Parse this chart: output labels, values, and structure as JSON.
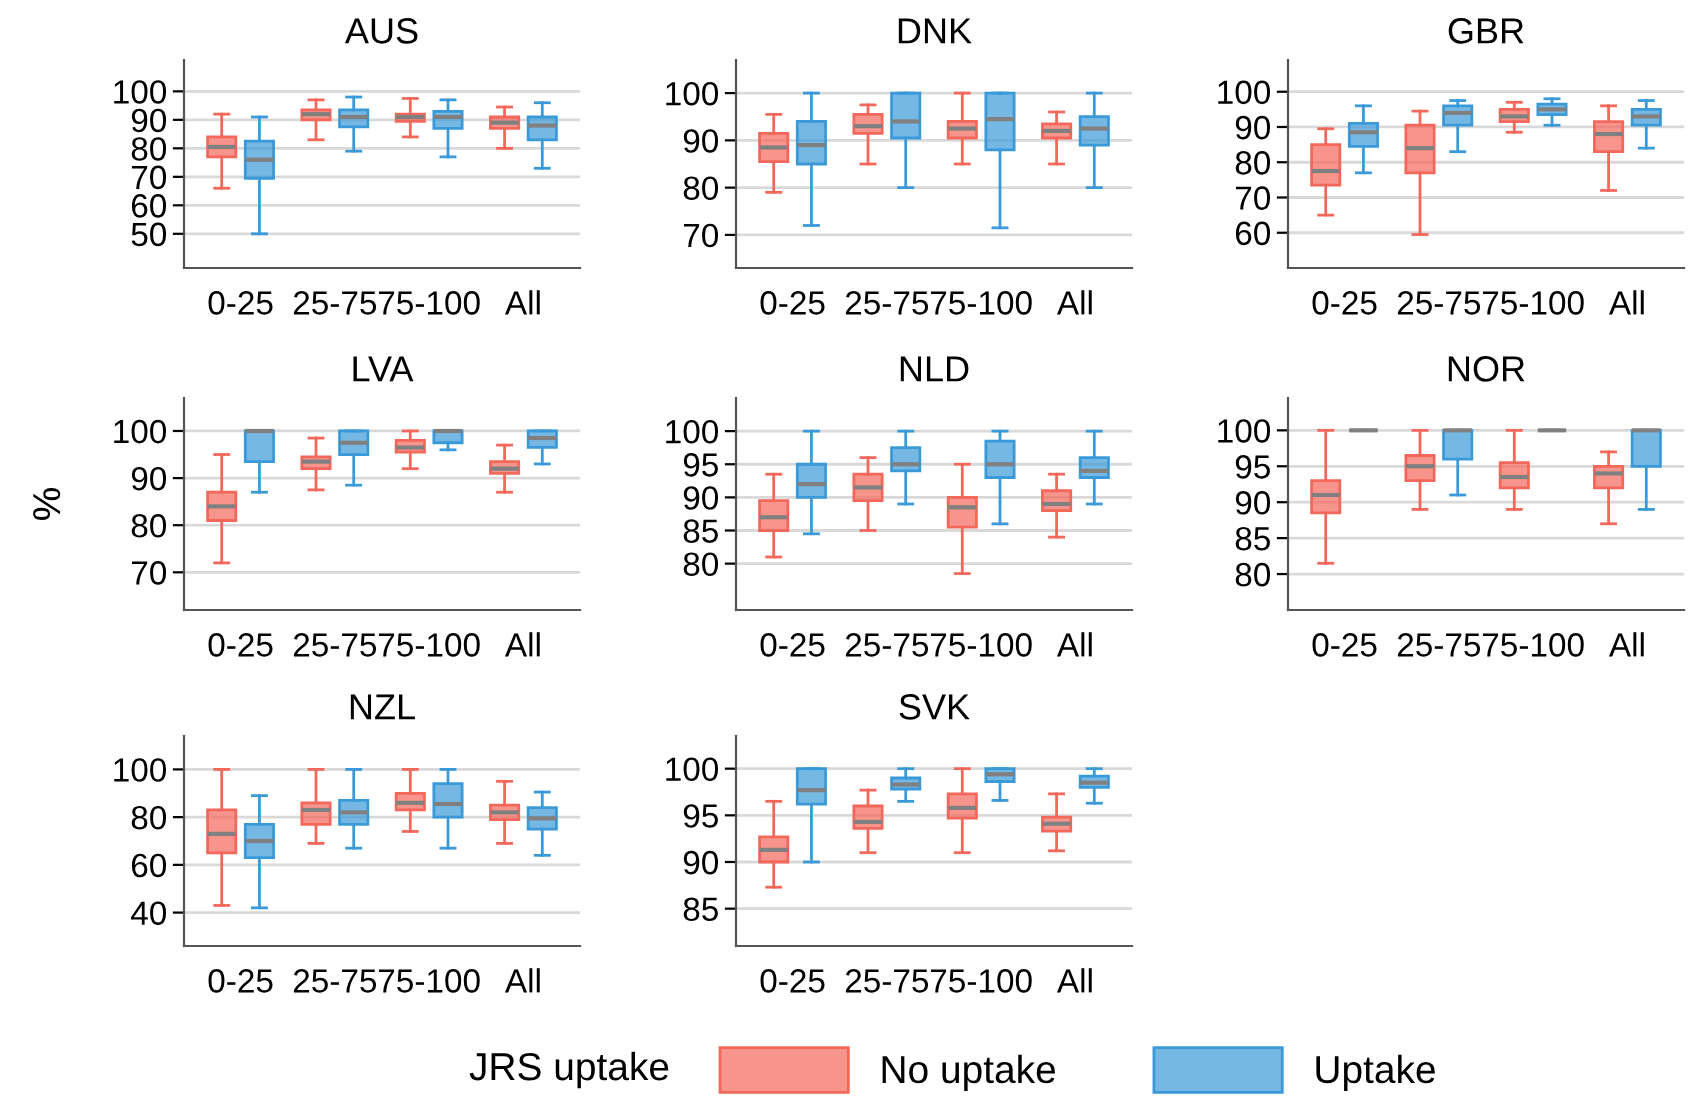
{
  "chart_data": [
    {
      "type": "box",
      "title": "AUS",
      "categories": [
        "0-25",
        "25-75",
        "75-100",
        "All"
      ],
      "ylim": [
        38,
        111
      ],
      "yticks": [
        50,
        60,
        70,
        80,
        90,
        100
      ],
      "grid": "y",
      "legend": "bottom",
      "legend_title": "JRS uptake",
      "series": [
        {
          "name": "No uptake",
          "color": "#f4685c",
          "boxes": [
            {
              "low": 66,
              "q1": 77,
              "median": 80.5,
              "q3": 84,
              "high": 92
            },
            {
              "low": 83,
              "q1": 90,
              "median": 92,
              "q3": 93.5,
              "high": 97
            },
            {
              "low": 84,
              "q1": 89.5,
              "median": 91,
              "q3": 92,
              "high": 97.5
            },
            {
              "low": 80,
              "q1": 87,
              "median": 89,
              "q3": 91,
              "high": 94.5
            }
          ]
        },
        {
          "name": "Uptake",
          "color": "#3a9ad9",
          "boxes": [
            {
              "low": 50,
              "q1": 69.5,
              "median": 76,
              "q3": 82.5,
              "high": 91
            },
            {
              "low": 79,
              "q1": 87.5,
              "median": 91,
              "q3": 93.5,
              "high": 98
            },
            {
              "low": 77,
              "q1": 87,
              "median": 91,
              "q3": 93,
              "high": 97
            },
            {
              "low": 73,
              "q1": 83,
              "median": 88,
              "q3": 91,
              "high": 96
            }
          ]
        }
      ]
    },
    {
      "type": "box",
      "title": "DNK",
      "categories": [
        "0-25",
        "25-75",
        "75-100",
        "All"
      ],
      "ylim": [
        63,
        107
      ],
      "yticks": [
        70,
        80,
        90,
        100
      ],
      "grid": "y",
      "series": [
        {
          "color": "#f4685c",
          "boxes": [
            {
              "low": 79,
              "q1": 85.5,
              "median": 88.5,
              "q3": 91.5,
              "high": 95.5
            },
            {
              "low": 85,
              "q1": 91.5,
              "median": 93,
              "q3": 95.5,
              "high": 97.5
            },
            {
              "low": 85,
              "q1": 90.5,
              "median": 92.5,
              "q3": 94,
              "high": 100
            },
            {
              "low": 85,
              "q1": 90.5,
              "median": 92,
              "q3": 93.5,
              "high": 96
            }
          ]
        },
        {
          "color": "#3a9ad9",
          "boxes": [
            {
              "low": 72,
              "q1": 85,
              "median": 89,
              "q3": 94,
              "high": 100
            },
            {
              "low": 80,
              "q1": 90.5,
              "median": 94,
              "q3": 100,
              "high": 100
            },
            {
              "low": 71.5,
              "q1": 88,
              "median": 94.5,
              "q3": 100,
              "high": 100
            },
            {
              "low": 80,
              "q1": 89,
              "median": 92.5,
              "q3": 95,
              "high": 100
            }
          ]
        }
      ]
    },
    {
      "type": "box",
      "title": "GBR",
      "categories": [
        "0-25",
        "25-75",
        "75-100",
        "All"
      ],
      "ylim": [
        50,
        109
      ],
      "yticks": [
        60,
        70,
        80,
        90,
        100
      ],
      "grid": "y",
      "series": [
        {
          "color": "#f4685c",
          "boxes": [
            {
              "low": 65,
              "q1": 73.5,
              "median": 77.5,
              "q3": 85,
              "high": 89.5
            },
            {
              "low": 59.5,
              "q1": 77,
              "median": 84,
              "q3": 90.5,
              "high": 94.5
            },
            {
              "low": 88.5,
              "q1": 91.5,
              "median": 93,
              "q3": 95,
              "high": 97
            },
            {
              "low": 72,
              "q1": 83,
              "median": 88,
              "q3": 91.5,
              "high": 96
            }
          ]
        },
        {
          "color": "#3a9ad9",
          "boxes": [
            {
              "low": 77,
              "q1": 84.5,
              "median": 88.5,
              "q3": 91,
              "high": 96
            },
            {
              "low": 83,
              "q1": 90.5,
              "median": 94,
              "q3": 96,
              "high": 97.5
            },
            {
              "low": 90.5,
              "q1": 93.5,
              "median": 95,
              "q3": 96.5,
              "high": 98
            },
            {
              "low": 84,
              "q1": 90.5,
              "median": 93,
              "q3": 95,
              "high": 97.5
            }
          ]
        }
      ]
    },
    {
      "type": "box",
      "title": "LVA",
      "ylabel": "%",
      "categories": [
        "0-25",
        "25-75",
        "75-100",
        "All"
      ],
      "ylim": [
        62,
        107
      ],
      "yticks": [
        70,
        80,
        90,
        100
      ],
      "grid": "y",
      "series": [
        {
          "color": "#f4685c",
          "boxes": [
            {
              "low": 72,
              "q1": 81,
              "median": 84,
              "q3": 87,
              "high": 95
            },
            {
              "low": 87.5,
              "q1": 92,
              "median": 93.5,
              "q3": 94.5,
              "high": 98.5
            },
            {
              "low": 92,
              "q1": 95.5,
              "median": 96.5,
              "q3": 98,
              "high": 100
            },
            {
              "low": 87,
              "q1": 91,
              "median": 92,
              "q3": 93.5,
              "high": 97
            }
          ]
        },
        {
          "color": "#3a9ad9",
          "boxes": [
            {
              "low": 87,
              "q1": 93.5,
              "median": 100,
              "q3": 100,
              "high": 100
            },
            {
              "low": 88.5,
              "q1": 95,
              "median": 97.5,
              "q3": 100,
              "high": 100
            },
            {
              "low": 96,
              "q1": 97.5,
              "median": 100,
              "q3": 100,
              "high": 100
            },
            {
              "low": 93,
              "q1": 96.5,
              "median": 98.5,
              "q3": 100,
              "high": 100
            }
          ]
        }
      ]
    },
    {
      "type": "box",
      "title": "NLD",
      "categories": [
        "0-25",
        "25-75",
        "75-100",
        "All"
      ],
      "ylim": [
        73,
        105
      ],
      "yticks": [
        80,
        85,
        90,
        95,
        100
      ],
      "grid": "y",
      "series": [
        {
          "color": "#f4685c",
          "boxes": [
            {
              "low": 81,
              "q1": 85,
              "median": 87,
              "q3": 89.5,
              "high": 93.5
            },
            {
              "low": 85,
              "q1": 89.5,
              "median": 91.5,
              "q3": 93.5,
              "high": 96
            },
            {
              "low": 78.5,
              "q1": 85.5,
              "median": 88.5,
              "q3": 90,
              "high": 95
            },
            {
              "low": 84,
              "q1": 88,
              "median": 89,
              "q3": 91,
              "high": 93.5
            }
          ]
        },
        {
          "color": "#3a9ad9",
          "boxes": [
            {
              "low": 84.5,
              "q1": 90,
              "median": 92,
              "q3": 95,
              "high": 100
            },
            {
              "low": 89,
              "q1": 94,
              "median": 95,
              "q3": 97.5,
              "high": 100
            },
            {
              "low": 86,
              "q1": 93,
              "median": 95,
              "q3": 98.5,
              "high": 100
            },
            {
              "low": 89,
              "q1": 93,
              "median": 94,
              "q3": 96,
              "high": 100
            }
          ]
        }
      ]
    },
    {
      "type": "box",
      "title": "NOR",
      "categories": [
        "0-25",
        "25-75",
        "75-100",
        "All"
      ],
      "ylim": [
        75,
        104.5
      ],
      "yticks": [
        80,
        85,
        90,
        95,
        100
      ],
      "grid": "y",
      "series": [
        {
          "color": "#f4685c",
          "boxes": [
            {
              "low": 81.5,
              "q1": 88.5,
              "median": 91,
              "q3": 93,
              "high": 100
            },
            {
              "low": 89,
              "q1": 93,
              "median": 95,
              "q3": 96.5,
              "high": 100
            },
            {
              "low": 89,
              "q1": 92,
              "median": 93.5,
              "q3": 95.5,
              "high": 100
            },
            {
              "low": 87,
              "q1": 92,
              "median": 94,
              "q3": 95,
              "high": 97
            }
          ]
        },
        {
          "color": "#3a9ad9",
          "boxes": [
            {
              "low": 100,
              "q1": 100,
              "median": 100,
              "q3": 100,
              "high": 100
            },
            {
              "low": 91,
              "q1": 96,
              "median": 100,
              "q3": 100,
              "high": 100
            },
            {
              "low": 100,
              "q1": 100,
              "median": 100,
              "q3": 100,
              "high": 100
            },
            {
              "low": 89,
              "q1": 95,
              "median": 100,
              "q3": 100,
              "high": 100
            }
          ]
        }
      ]
    },
    {
      "type": "box",
      "title": "NZL",
      "categories": [
        "0-25",
        "25-75",
        "75-100",
        "All"
      ],
      "ylim": [
        26,
        114
      ],
      "yticks": [
        40,
        60,
        80,
        100
      ],
      "grid": "y",
      "series": [
        {
          "color": "#f4685c",
          "boxes": [
            {
              "low": 43,
              "q1": 65,
              "median": 73,
              "q3": 83,
              "high": 100
            },
            {
              "low": 69,
              "q1": 77,
              "median": 83,
              "q3": 86,
              "high": 100
            },
            {
              "low": 74,
              "q1": 83,
              "median": 86,
              "q3": 90,
              "high": 100
            },
            {
              "low": 69,
              "q1": 79,
              "median": 82,
              "q3": 85,
              "high": 95
            }
          ]
        },
        {
          "color": "#3a9ad9",
          "boxes": [
            {
              "low": 42,
              "q1": 63,
              "median": 70,
              "q3": 77,
              "high": 89
            },
            {
              "low": 67,
              "q1": 77,
              "median": 82,
              "q3": 87,
              "high": 100
            },
            {
              "low": 67,
              "q1": 80,
              "median": 85.5,
              "q3": 94,
              "high": 100
            },
            {
              "low": 64,
              "q1": 75,
              "median": 79.5,
              "q3": 84,
              "high": 90.5
            }
          ]
        }
      ]
    },
    {
      "type": "box",
      "title": "SVK",
      "categories": [
        "0-25",
        "25-75",
        "75-100",
        "All"
      ],
      "ylim": [
        81,
        103.5
      ],
      "yticks": [
        85,
        90,
        95,
        100
      ],
      "grid": "y",
      "series": [
        {
          "color": "#f4685c",
          "boxes": [
            {
              "low": 87.3,
              "q1": 90,
              "median": 91.3,
              "q3": 92.7,
              "high": 96.5
            },
            {
              "low": 91,
              "q1": 93.6,
              "median": 94.3,
              "q3": 96,
              "high": 97.7
            },
            {
              "low": 91,
              "q1": 94.7,
              "median": 95.8,
              "q3": 97.3,
              "high": 100
            },
            {
              "low": 91.2,
              "q1": 93.3,
              "median": 94.1,
              "q3": 94.8,
              "high": 97.3
            }
          ]
        },
        {
          "color": "#3a9ad9",
          "boxes": [
            {
              "low": 90,
              "q1": 96.2,
              "median": 97.7,
              "q3": 100,
              "high": 100
            },
            {
              "low": 96.5,
              "q1": 97.8,
              "median": 98.3,
              "q3": 99,
              "high": 100
            },
            {
              "low": 96.6,
              "q1": 98.6,
              "median": 99.4,
              "q3": 100,
              "high": 100
            },
            {
              "low": 96.3,
              "q1": 98,
              "median": 98.5,
              "q3": 99.2,
              "high": 100
            }
          ]
        }
      ]
    }
  ]
}
